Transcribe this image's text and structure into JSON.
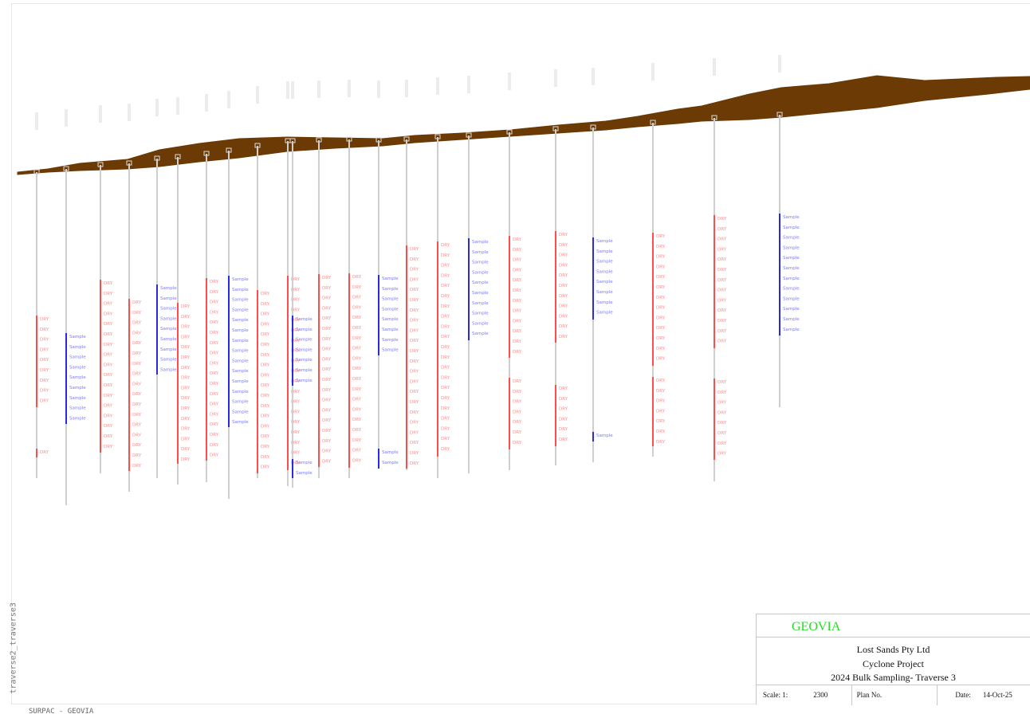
{
  "side_label": "traverse2_traverse3",
  "footer_label": "SURPAC - GEOVIA",
  "title_block": {
    "brand": "GEOVIA",
    "company": "Lost Sands Pty Ltd",
    "project": "Cyclone Project",
    "drawing_title": "2024 Bulk Sampling- Traverse 3",
    "scale_label": "Scale: 1:",
    "scale_value": "2300",
    "plan_label": "Plan No.",
    "date_label": "Date:",
    "date_value": "14-Oct-25"
  },
  "legend_codes": {
    "dry": "DRY",
    "sample": "Sample"
  },
  "colors": {
    "topography": "#6b3a05",
    "trace": "#cfcfcf",
    "dry_interval": "#ff4d4d",
    "dry_text": "#ff8a8a",
    "sample_interval": "#2a2ae0",
    "sample_text": "#7a7aff",
    "brand": "#22dd22"
  },
  "holes": [
    {
      "collar": 216,
      "bottom": 600,
      "intervals": [
        {
          "type": "dry",
          "from": 396,
          "to": 511
        },
        {
          "type": "dry",
          "from": 563,
          "to": 574
        }
      ]
    },
    {
      "collar": 212,
      "bottom": 634,
      "intervals": [
        {
          "type": "sample",
          "from": 418,
          "to": 532
        }
      ]
    },
    {
      "collar": 207,
      "bottom": 594,
      "intervals": [
        {
          "type": "dry",
          "from": 351,
          "to": 568
        }
      ]
    },
    {
      "collar": 205,
      "bottom": 617,
      "intervals": [
        {
          "type": "dry",
          "from": 375,
          "to": 591
        }
      ]
    },
    {
      "collar": 199,
      "bottom": 600,
      "intervals": [
        {
          "type": "sample",
          "from": 357,
          "to": 470
        }
      ]
    },
    {
      "collar": 197,
      "bottom": 608,
      "intervals": [
        {
          "type": "dry",
          "from": 380,
          "to": 582
        }
      ]
    },
    {
      "collar": 193,
      "bottom": 605,
      "intervals": [
        {
          "type": "dry",
          "from": 349,
          "to": 578
        }
      ]
    },
    {
      "collar": 189,
      "bottom": 626,
      "intervals": [
        {
          "type": "sample",
          "from": 346,
          "to": 536
        }
      ]
    },
    {
      "collar": 183,
      "bottom": 600,
      "intervals": [
        {
          "type": "dry",
          "from": 364,
          "to": 594
        }
      ]
    },
    {
      "collar": 177,
      "bottom": 610,
      "intervals": [
        {
          "type": "dry",
          "from": 346,
          "to": 590
        }
      ]
    },
    {
      "collar": 177,
      "bottom": 612,
      "intervals": [
        {
          "type": "sample",
          "from": 396,
          "to": 484
        },
        {
          "type": "sample",
          "from": 576,
          "to": 600
        }
      ]
    },
    {
      "collar": 176,
      "bottom": 600,
      "intervals": [
        {
          "type": "dry",
          "from": 344,
          "to": 586
        }
      ]
    },
    {
      "collar": 175,
      "bottom": 600,
      "intervals": [
        {
          "type": "dry",
          "from": 343,
          "to": 587
        }
      ]
    },
    {
      "collar": 176,
      "bottom": 588,
      "intervals": [
        {
          "type": "sample",
          "from": 345,
          "to": 446
        },
        {
          "type": "sample",
          "from": 563,
          "to": 588
        }
      ]
    },
    {
      "collar": 175,
      "bottom": 590,
      "intervals": [
        {
          "type": "dry",
          "from": 308,
          "to": 588
        }
      ]
    },
    {
      "collar": 172,
      "bottom": 600,
      "intervals": [
        {
          "type": "dry",
          "from": 303,
          "to": 573
        }
      ]
    },
    {
      "collar": 170,
      "bottom": 594,
      "intervals": [
        {
          "type": "sample",
          "from": 299,
          "to": 427
        }
      ]
    },
    {
      "collar": 166,
      "bottom": 590,
      "intervals": [
        {
          "type": "dry",
          "from": 296,
          "to": 449
        },
        {
          "type": "dry",
          "from": 474,
          "to": 564
        }
      ]
    },
    {
      "collar": 162,
      "bottom": 584,
      "intervals": [
        {
          "type": "dry",
          "from": 290,
          "to": 430
        },
        {
          "type": "dry",
          "from": 483,
          "to": 560
        }
      ]
    },
    {
      "collar": 160,
      "bottom": 580,
      "intervals": [
        {
          "type": "sample",
          "from": 298,
          "to": 401
        },
        {
          "type": "sample",
          "from": 542,
          "to": 554
        }
      ]
    },
    {
      "collar": 154,
      "bottom": 573,
      "intervals": [
        {
          "type": "dry",
          "from": 292,
          "to": 459
        },
        {
          "type": "dry",
          "from": 473,
          "to": 560
        }
      ]
    },
    {
      "collar": 148,
      "bottom": 604,
      "intervals": [
        {
          "type": "dry",
          "from": 270,
          "to": 437
        },
        {
          "type": "dry",
          "from": 475,
          "to": 577
        }
      ]
    },
    {
      "collar": 144,
      "bottom": 511,
      "intervals": [
        {
          "type": "sample",
          "from": 268,
          "to": 421
        }
      ]
    }
  ]
}
